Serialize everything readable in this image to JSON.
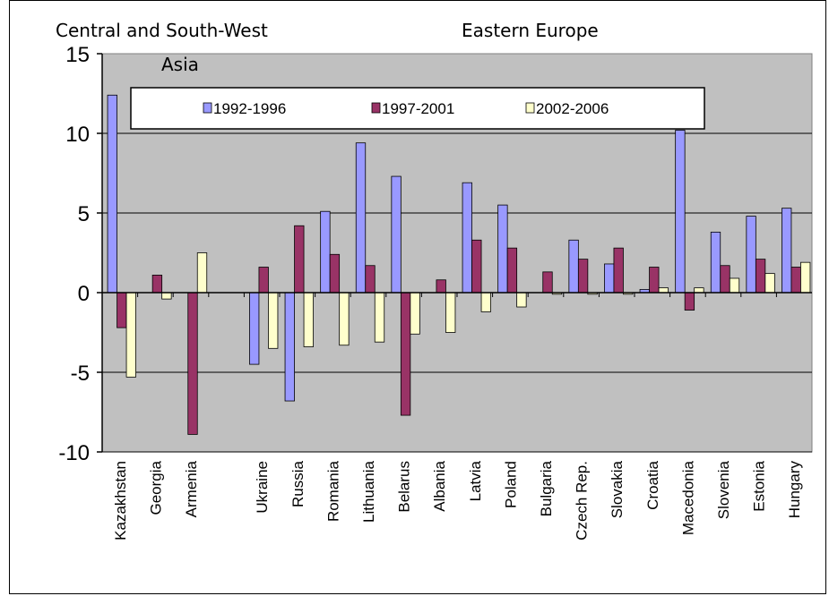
{
  "chart_data": {
    "type": "bar",
    "title": "",
    "xlabel": "",
    "ylabel": "",
    "ylim": [
      -10,
      15
    ],
    "yticks": [
      15,
      10,
      5,
      0,
      -5,
      -10
    ],
    "grid": true,
    "legend": "top",
    "group_labels": [
      "Central and South-West",
      "Asia",
      "Eastern Europe"
    ],
    "categories": [
      "Kazakhstan",
      "Georgia",
      "Armenia",
      "",
      "Ukraine",
      "Russia",
      "Romania",
      "Lithuania",
      "Belarus",
      "Albania",
      "Latvia",
      "Poland",
      "Bulgaria",
      "Czech Rep.",
      "Slovakia",
      "Croatia",
      "Macedonia",
      "Slovenia",
      "Estonia",
      "Hungary"
    ],
    "series": [
      {
        "name": "1992-1996",
        "color": "#9999ff",
        "values": [
          12.4,
          0,
          0,
          null,
          -4.5,
          -6.8,
          5.1,
          9.4,
          7.3,
          0,
          6.9,
          5.5,
          0,
          3.3,
          1.8,
          0.2,
          10.2,
          3.8,
          4.8,
          5.3
        ]
      },
      {
        "name": "1997-2001",
        "color": "#993366",
        "values": [
          -2.2,
          1.1,
          -8.9,
          null,
          1.6,
          4.2,
          2.4,
          1.7,
          -7.7,
          0.8,
          3.3,
          2.8,
          1.3,
          2.1,
          2.8,
          1.6,
          -1.1,
          1.7,
          2.1,
          1.6
        ]
      },
      {
        "name": "2002-2006",
        "color": "#ffffcc",
        "values": [
          -5.3,
          -0.4,
          2.5,
          null,
          -3.5,
          -3.4,
          -3.3,
          -3.1,
          -2.6,
          -2.5,
          -1.2,
          -0.9,
          -0.1,
          -0.1,
          -0.1,
          0.3,
          0.3,
          0.9,
          1.2,
          1.9
        ]
      }
    ]
  }
}
